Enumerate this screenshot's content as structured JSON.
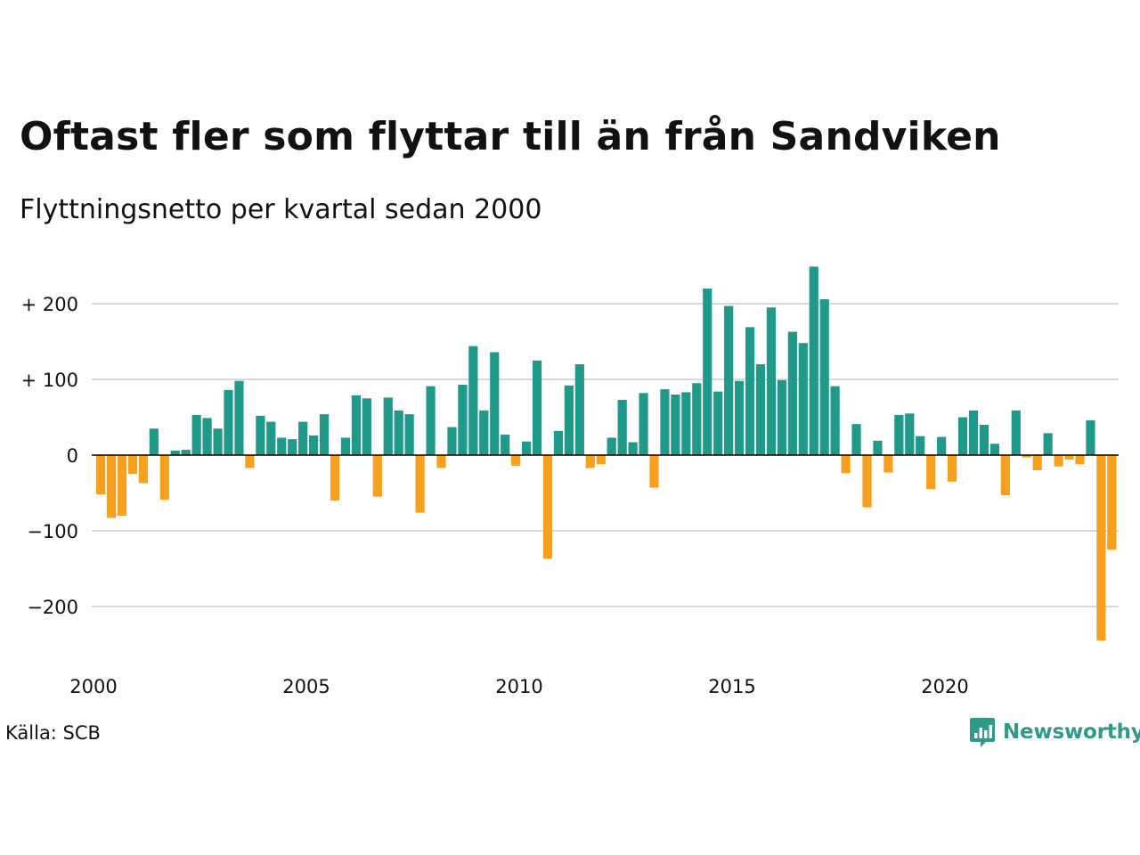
{
  "title": "Oftast fler som flyttar till än från Sandviken",
  "subtitle": "Flyttningsnetto per kvartal sedan 2000",
  "source": "Källa: SCB",
  "brand": {
    "name": "Newsworthy",
    "icon": "newsworthy-logo-icon"
  },
  "colors": {
    "positive": "#1f9a8a",
    "negative": "#f6a01d",
    "grid": "#d9d9d9",
    "zero": "#000000"
  },
  "chart_data": {
    "type": "bar",
    "x_start": "2000 Q1",
    "ylim": [
      -265,
      270
    ],
    "yticks": [
      200,
      100,
      0,
      -100,
      -200
    ],
    "ytick_labels": [
      "+ 200",
      "+ 100",
      "0",
      "−100",
      "−200"
    ],
    "xtick_labels": [
      "2000",
      "2005",
      "2010",
      "2015",
      "2020"
    ],
    "grid": true,
    "values": [
      -52,
      -83,
      -80,
      -25,
      -37,
      35,
      -59,
      6,
      7,
      53,
      49,
      35,
      86,
      98,
      -17,
      52,
      44,
      23,
      21,
      44,
      26,
      54,
      -60,
      23,
      79,
      75,
      -55,
      76,
      59,
      54,
      -76,
      91,
      -17,
      37,
      93,
      144,
      59,
      136,
      27,
      -14,
      18,
      125,
      -137,
      32,
      92,
      120,
      -17,
      -12,
      23,
      73,
      17,
      82,
      -43,
      87,
      80,
      83,
      95,
      220,
      84,
      197,
      98,
      169,
      120,
      195,
      99,
      163,
      148,
      249,
      206,
      91,
      -24,
      41,
      -69,
      19,
      -23,
      53,
      55,
      25,
      -45,
      24,
      -35,
      50,
      59,
      40,
      15,
      -53,
      59,
      -3,
      -20,
      29,
      -15,
      -6,
      -12,
      46,
      -245,
      -125
    ]
  }
}
